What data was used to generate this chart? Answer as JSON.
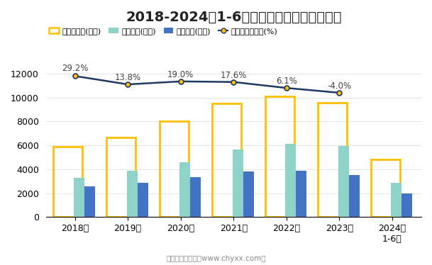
{
  "title": "2018-2024年1-6月四川省累计进出口统计图",
  "years": [
    "2018年",
    "2019年",
    "2020年",
    "2021年",
    "2022年",
    "2023年",
    "2024年\n1-6月"
  ],
  "total_import_export": [
    5900,
    6650,
    8000,
    9500,
    10100,
    9550,
    4850
  ],
  "export": [
    3250,
    3900,
    4600,
    5650,
    6100,
    5950,
    2850
  ],
  "import_vals": [
    2550,
    2850,
    3350,
    3800,
    3850,
    3500,
    1950
  ],
  "yoy_labels": [
    "29.2%",
    "13.8%",
    "19.0%",
    "17.6%",
    "6.1%",
    "-4.0%"
  ],
  "line_y_values": [
    11800,
    11100,
    11350,
    11300,
    10800,
    10400
  ],
  "line_x_indices": [
    0,
    1,
    2,
    3,
    4,
    5
  ],
  "bar_total_color": "#FFC000",
  "bar_export_color": "#8DD3C7",
  "bar_import_color": "#4472C4",
  "line_color": "#1F3864",
  "line_marker_facecolor": "#FFC000",
  "background_color": "#FFFFFF",
  "ylim": [
    0,
    13500
  ],
  "yticks": [
    0,
    2000,
    4000,
    6000,
    8000,
    10000,
    12000
  ],
  "legend_labels": [
    "累计进出口(亿元)",
    "累计出口(亿元)",
    "累计进口(亿元)",
    "累计进出口同比(%)"
  ],
  "footer": "制图：智研咨询（www.chyxx.com）",
  "title_fontsize": 14,
  "tick_fontsize": 9,
  "legend_fontsize": 8,
  "label_fontsize": 8.5
}
